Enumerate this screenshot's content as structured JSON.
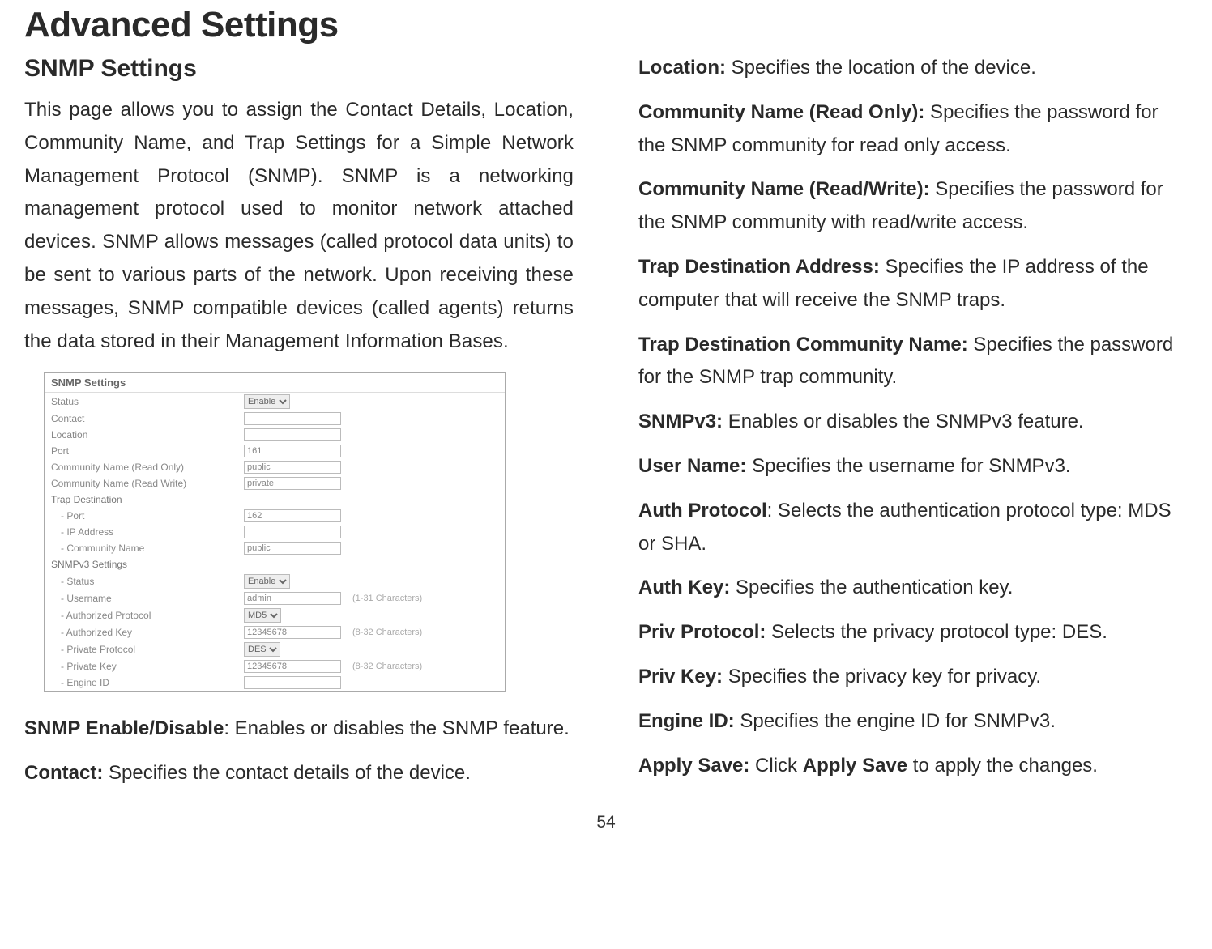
{
  "page": {
    "title": "Advanced Settings",
    "number": "54"
  },
  "left": {
    "heading": "SNMP Settings",
    "intro": "This page allows you to assign the Contact Details, Location, Community Name, and Trap Settings for a Simple Network Management Protocol (SNMP). SNMP is a networking management protocol used to monitor network attached devices. SNMP allows messages (called protocol data units) to be sent to various parts of the network. Upon receiving these messages, SNMP compatible devices (called agents) returns the data stored in their Management Information Bases.",
    "def1_label": "SNMP Enable/Disable",
    "def1_text": ": Enables or disables the SNMP feature.",
    "def2_label": "Contact:",
    "def2_text": " Specifies the contact details of the device."
  },
  "right": {
    "d1_label": "Location:",
    "d1_text": " Specifies the location of the device.",
    "d2_label": "Community Name (Read Only):",
    "d2_text": " Specifies the password for the SNMP community for read only access.",
    "d3_label": "Community Name (Read/Write):",
    "d3_text": " Specifies the password for the SNMP community with read/write access.",
    "d4_label": "Trap Destination Address:",
    "d4_text": " Specifies the IP address of the computer that will receive the SNMP traps.",
    "d5_label": "Trap Destination Community Name:",
    "d5_text": " Specifies the password for the SNMP trap community.",
    "d6_label": "SNMPv3:",
    "d6_text": " Enables or disables the SNMPv3 feature.",
    "d7_label": "User Name:",
    "d7_text": " Specifies the username for SNMPv3.",
    "d8_label": "Auth Protocol",
    "d8_text": ": Selects the authentication protocol type: MDS or SHA.",
    "d9_label": "Auth Key:",
    "d9_text": " Specifies the authentication key.",
    "d10_label": "Priv Protocol:",
    "d10_text": " Selects the privacy protocol type: DES.",
    "d11_label": "Priv Key:",
    "d11_text": " Specifies the privacy key for privacy.",
    "d12_label": "Engine ID:",
    "d12_text": " Specifies the engine ID for SNMPv3.",
    "d13_label": "Apply Save:",
    "d13_text_a": " Click ",
    "d13_bold": "Apply Save",
    "d13_text_b": " to apply the changes."
  },
  "screenshot": {
    "title": "SNMP Settings",
    "rows": {
      "status": "Status",
      "status_val": "Enable",
      "contact": "Contact",
      "location": "Location",
      "port": "Port",
      "port_val": "161",
      "comm_ro": "Community Name (Read Only)",
      "comm_ro_val": "public",
      "comm_rw": "Community Name (Read Write)",
      "comm_rw_val": "private",
      "trap_dest": "Trap Destination",
      "trap_port": "- Port",
      "trap_port_val": "162",
      "trap_ip": "- IP Address",
      "trap_comm": "- Community Name",
      "trap_comm_val": "public",
      "v3_settings": "SNMPv3 Settings",
      "v3_status": "- Status",
      "v3_status_val": "Enable",
      "v3_user": "- Username",
      "v3_user_val": "admin",
      "v3_user_hint": "(1-31 Characters)",
      "v3_auth_proto": "- Authorized Protocol",
      "v3_auth_proto_val": "MD5",
      "v3_auth_key": "- Authorized Key",
      "v3_auth_key_val": "12345678",
      "v3_auth_key_hint": "(8-32 Characters)",
      "v3_priv_proto": "- Private Protocol",
      "v3_priv_proto_val": "DES",
      "v3_priv_key": "- Private Key",
      "v3_priv_key_val": "12345678",
      "v3_priv_key_hint": "(8-32 Characters)",
      "v3_engine": "- Engine ID"
    }
  }
}
